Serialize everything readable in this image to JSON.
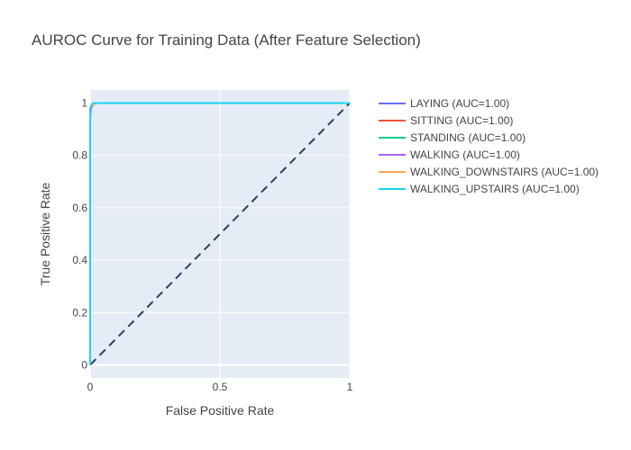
{
  "chart_data": {
    "type": "line",
    "title": "AUROC Curve for Training Data (After Feature Selection)",
    "xlabel": "False Positive Rate",
    "ylabel": "True Positive Rate",
    "xlim": [
      0,
      1
    ],
    "ylim": [
      -0.05,
      1.05
    ],
    "x_ticks": [
      {
        "value": 0,
        "label": "0"
      },
      {
        "value": 0.5,
        "label": "0.5"
      },
      {
        "value": 1,
        "label": "1"
      }
    ],
    "y_ticks": [
      {
        "value": 0,
        "label": "0"
      },
      {
        "value": 0.2,
        "label": "0.2"
      },
      {
        "value": 0.4,
        "label": "0.4"
      },
      {
        "value": 0.6,
        "label": "0.6"
      },
      {
        "value": 0.8,
        "label": "0.8"
      },
      {
        "value": 1,
        "label": "1"
      }
    ],
    "grid": true,
    "legend_position": "right",
    "plot_background": "#E5ECF6",
    "series": [
      {
        "name": "LAYING (AUC=1.00)",
        "color": "#636EFA",
        "x": [
          0,
          0,
          0.003,
          0.008,
          0.015,
          1
        ],
        "y": [
          0,
          0.97,
          0.985,
          0.995,
          1,
          1
        ]
      },
      {
        "name": "SITTING (AUC=1.00)",
        "color": "#EF553B",
        "x": [
          0,
          0,
          0.004,
          0.01,
          0.018,
          1
        ],
        "y": [
          0,
          0.96,
          0.98,
          0.99,
          1,
          1
        ]
      },
      {
        "name": "STANDING (AUC=1.00)",
        "color": "#00CC96",
        "x": [
          0,
          0,
          0.003,
          0.009,
          0.016,
          1
        ],
        "y": [
          0,
          0.965,
          0.982,
          0.993,
          1,
          1
        ]
      },
      {
        "name": "WALKING (AUC=1.00)",
        "color": "#AB63FA",
        "x": [
          0,
          0,
          0.004,
          0.01,
          0.02,
          1
        ],
        "y": [
          0,
          0.975,
          0.99,
          0.997,
          1,
          1
        ]
      },
      {
        "name": "WALKING_DOWNSTAIRS (AUC=1.00)",
        "color": "#FFA15A",
        "x": [
          0,
          0,
          0.005,
          0.012,
          0.02,
          1
        ],
        "y": [
          0,
          0.96,
          0.98,
          0.992,
          1,
          1
        ]
      },
      {
        "name": "WALKING_UPSTAIRS (AUC=1.00)",
        "color": "#19D3F3",
        "x": [
          0,
          0,
          0.003,
          0.006,
          0.012,
          1
        ],
        "y": [
          0,
          0.93,
          0.975,
          0.995,
          1,
          1
        ]
      }
    ],
    "reference_line": {
      "x": [
        0,
        1
      ],
      "y": [
        0,
        1
      ],
      "color": "#2A3F5F",
      "dash": "dashed"
    }
  }
}
